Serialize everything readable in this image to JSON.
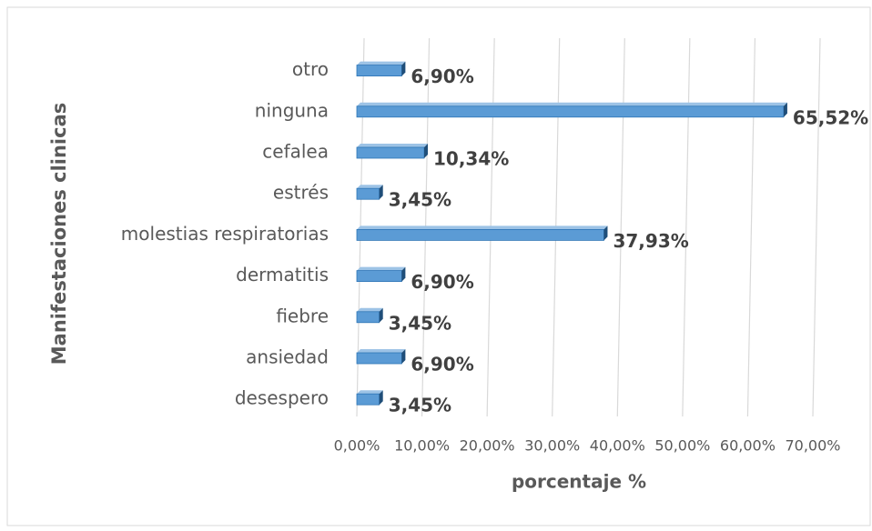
{
  "chart_data": {
    "type": "bar",
    "orientation": "horizontal",
    "xlabel": "porcentaje %",
    "ylabel": "Manifestaciones clinicas",
    "categories": [
      "otro",
      "ninguna",
      "cefalea",
      "estrés",
      "molestias respiratorias",
      "dermatitis",
      "fiebre",
      "ansiedad",
      "desespero"
    ],
    "values": [
      6.9,
      65.52,
      10.34,
      3.45,
      37.93,
      6.9,
      3.45,
      6.9,
      3.45
    ],
    "value_labels": [
      "6,90%",
      "65,52%",
      "10,34%",
      "3,45%",
      "37,93%",
      "6,90%",
      "3,45%",
      "6,90%",
      "3,45%"
    ],
    "color": "#5b9bd5",
    "xlim": [
      0,
      70
    ],
    "xticks": [
      {
        "value": 0,
        "label": "0,00%"
      },
      {
        "value": 10,
        "label": "10,00%"
      },
      {
        "value": 20,
        "label": "20,00%"
      },
      {
        "value": 30,
        "label": "30,00%"
      },
      {
        "value": 40,
        "label": "40,00%"
      },
      {
        "value": 50,
        "label": "50,00%"
      },
      {
        "value": 60,
        "label": "60,00%"
      },
      {
        "value": 70,
        "label": "70,00%"
      }
    ],
    "grid": true
  }
}
